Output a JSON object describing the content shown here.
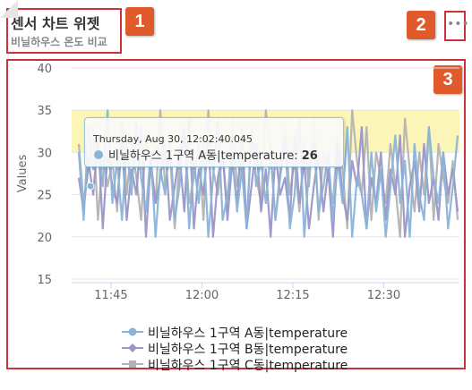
{
  "widget": {
    "title": "센서 차트 위젯",
    "subtitle": "비닐하우스 온도 비교",
    "menu_icon": "more-horizontal-icon",
    "badges": [
      "1",
      "2",
      "3"
    ]
  },
  "tooltip": {
    "time": "Thursday, Aug 30, 12:02:40.045",
    "series": "비닐하우스 1구역 A동|temperature",
    "value": "26"
  },
  "colors": {
    "series_a": "#8ab4d8",
    "series_b": "#9a96c8",
    "series_c": "#b3b3b3",
    "band": "#fbf6b8",
    "badge": "#e05a2b",
    "annotation_border": "#d0303a"
  },
  "chart_data": {
    "type": "line",
    "ylabel": "Values",
    "ylim": [
      15,
      40
    ],
    "yticks": [
      "15",
      "20",
      "25",
      "30",
      "35",
      "40"
    ],
    "xticks": [
      "11:45",
      "12:00",
      "12:15",
      "12:30"
    ],
    "xtick_minutes": [
      45,
      60,
      75,
      90
    ],
    "xlim_minutes": [
      38.5,
      102.5
    ],
    "plot_bands": [
      {
        "from": 30,
        "to": 35
      }
    ],
    "legend_position": "bottom",
    "grid": true,
    "series": [
      {
        "name": "비닐하우스 1구역 A동|temperature",
        "marker": "circle",
        "values": [
          30,
          22,
          33,
          28,
          31,
          26,
          35,
          24,
          29,
          22,
          31,
          25,
          34,
          27,
          23,
          30,
          20,
          28,
          25,
          32,
          22,
          26,
          33,
          21,
          29,
          24,
          31,
          20,
          27,
          34,
          22,
          25,
          30,
          23,
          28,
          21,
          33,
          26,
          29,
          24,
          30,
          22,
          27,
          32,
          21,
          25,
          34,
          20,
          28,
          31,
          23,
          26,
          30,
          22,
          29,
          24,
          33,
          20,
          27,
          25,
          21,
          30,
          23,
          28,
          20,
          26,
          32,
          24,
          29,
          20,
          31,
          25,
          22,
          33,
          27,
          24,
          30,
          21,
          26,
          32
        ]
      },
      {
        "name": "비닐하우스 1구역 B동|temperature",
        "marker": "diamond",
        "values": [
          27,
          23,
          29,
          25,
          32,
          21,
          30,
          26,
          24,
          31,
          22,
          28,
          25,
          33,
          20,
          29,
          24,
          27,
          31,
          22,
          26,
          30,
          23,
          34,
          21,
          28,
          25,
          32,
          20,
          27,
          30,
          22,
          29,
          24,
          33,
          21,
          26,
          31,
          23,
          28,
          20,
          30,
          25,
          27,
          22,
          32,
          24,
          29,
          21,
          26,
          30,
          23,
          28,
          20,
          31,
          25,
          22,
          29,
          26,
          33,
          21,
          27,
          24,
          30,
          22,
          28,
          25,
          32,
          20,
          26,
          29,
          23,
          31,
          24,
          27,
          22,
          30,
          25,
          28,
          23
        ]
      },
      {
        "name": "비닐하우스 1구역 C동|temperature",
        "marker": "square",
        "values": [
          31,
          24,
          28,
          33,
          22,
          30,
          26,
          29,
          23,
          34,
          25,
          31,
          27,
          22,
          32,
          28,
          24,
          35,
          26,
          30,
          21,
          29,
          33,
          24,
          27,
          31,
          22,
          35,
          28,
          25,
          30,
          23,
          34,
          26,
          29,
          21,
          32,
          27,
          24,
          35,
          30,
          22,
          28,
          33,
          25,
          29,
          23,
          31,
          26,
          34,
          22,
          30,
          27,
          24,
          32,
          28,
          21,
          35,
          29,
          25,
          33,
          22,
          30,
          27,
          24,
          31,
          26,
          20,
          34,
          28,
          23,
          30,
          25,
          33,
          22,
          31,
          27,
          24,
          29,
          22
        ]
      }
    ]
  }
}
